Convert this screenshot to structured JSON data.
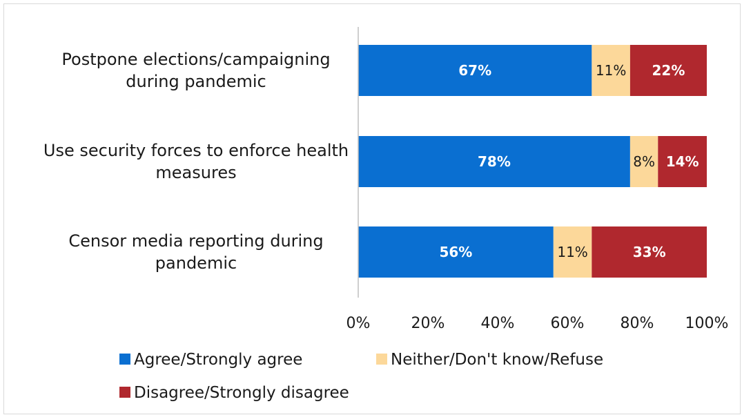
{
  "chart_data": {
    "type": "bar",
    "orientation": "horizontal",
    "stacked": true,
    "categories": [
      [
        "Postpone elections/campaigning",
        "during pandemic"
      ],
      [
        "Use security forces to enforce health",
        "measures"
      ],
      [
        "Censor media reporting during",
        "pandemic"
      ]
    ],
    "series": [
      {
        "name": "Agree/Strongly agree",
        "color": "#0a6fd1",
        "values": [
          67,
          78,
          56
        ],
        "labels": [
          "67%",
          "78%",
          "56%"
        ],
        "label_style": "bold-white"
      },
      {
        "name": "Neither/Don't know/Refuse",
        "color": "#fcd89a",
        "values": [
          11,
          8,
          11
        ],
        "labels": [
          "11%",
          "8%",
          "11%"
        ],
        "label_style": "plain-dark"
      },
      {
        "name": "Disagree/Strongly disagree",
        "color": "#b0282e",
        "values": [
          22,
          14,
          33
        ],
        "labels": [
          "22%",
          "14%",
          "33%"
        ],
        "label_style": "bold-white"
      }
    ],
    "xlim": [
      0,
      100
    ],
    "xticks": [
      0,
      20,
      40,
      60,
      80,
      100
    ],
    "xtick_labels": [
      "0%",
      "20%",
      "40%",
      "60%",
      "80%",
      "100%"
    ],
    "title": "",
    "xlabel": "",
    "ylabel": "",
    "grid": false,
    "legend_position": "bottom-left"
  }
}
